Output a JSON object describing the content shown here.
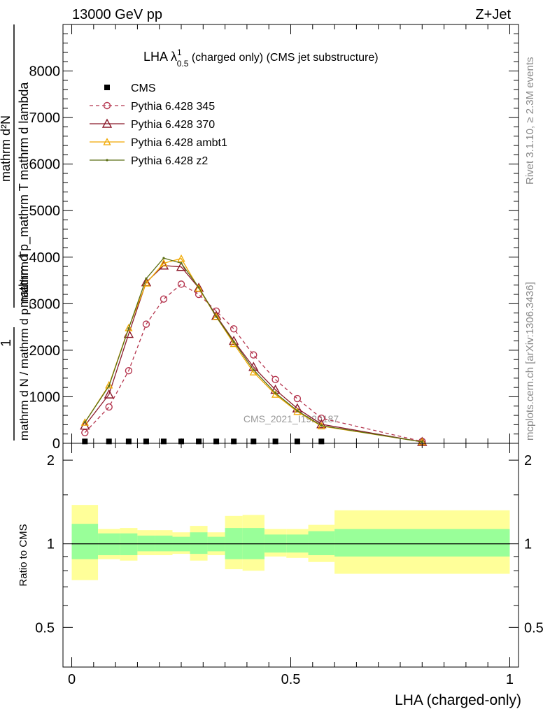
{
  "header": {
    "energy_label": "13000 GeV pp",
    "process_label": "Z+Jet"
  },
  "side_labels": {
    "rivet": "Rivet 3.1.10, ≥ 2.3M events",
    "mcplots": "mcplots.cern.ch [arXiv:1306.3436]"
  },
  "colors": {
    "cms": "#000000",
    "p345": "#b5364f",
    "p370": "#8b1a2b",
    "ambt1": "#f0a800",
    "z2": "#5b6e14",
    "band_inner": "#99ff99",
    "band_outer": "#ffff99"
  },
  "chart_data": [
    {
      "type": "line",
      "panel": "main",
      "title": {
        "main": "LHA λ",
        "sup": "1",
        "sub": "0.5",
        "suffix": " (charged only) (CMS jet substructure)"
      },
      "ylabel_numerator": "mathrm d²N",
      "ylabel_denominator": "mathrm d p_mathrm T mathrm d lambda",
      "ylabel_prefix": "1",
      "ylabel_prefix_den": "mathrm d N / mathrm d p_mathrm T",
      "watermark": "CMS_2021_I1920187",
      "xlim": [
        -0.02,
        1.02
      ],
      "ylim": [
        0,
        9000
      ],
      "yticks": [
        0,
        1000,
        2000,
        3000,
        4000,
        5000,
        6000,
        7000,
        8000
      ],
      "ytick_labels": [
        "0",
        "1000",
        "2000",
        "3000",
        "4000",
        "5000",
        "6000",
        "7000",
        "8000"
      ],
      "legend": {
        "position": "top-left",
        "entries": [
          "CMS",
          "Pythia 6.428 345",
          "Pythia 6.428 370",
          "Pythia 6.428 ambt1",
          "Pythia 6.428 z2"
        ]
      },
      "series": [
        {
          "name": "CMS",
          "x": [
            0.03,
            0.085,
            0.13,
            0.17,
            0.21,
            0.25,
            0.29,
            0.33,
            0.37,
            0.415,
            0.465,
            0.515,
            0.57
          ],
          "values": [
            10,
            10,
            10,
            10,
            10,
            10,
            10,
            10,
            10,
            10,
            10,
            10,
            10
          ]
        },
        {
          "name": "Pythia 6.428 345",
          "x": [
            0.03,
            0.085,
            0.13,
            0.17,
            0.21,
            0.25,
            0.29,
            0.33,
            0.37,
            0.415,
            0.465,
            0.515,
            0.57,
            0.8
          ],
          "values": [
            230,
            780,
            1560,
            2560,
            3100,
            3420,
            3200,
            2840,
            2460,
            1900,
            1370,
            960,
            540,
            40
          ]
        },
        {
          "name": "Pythia 6.428 370",
          "x": [
            0.03,
            0.085,
            0.13,
            0.17,
            0.21,
            0.25,
            0.29,
            0.33,
            0.37,
            0.415,
            0.465,
            0.515,
            0.57,
            0.8
          ],
          "values": [
            380,
            1050,
            2350,
            3460,
            3820,
            3790,
            3340,
            2740,
            2200,
            1640,
            1150,
            750,
            410,
            30
          ]
        },
        {
          "name": "Pythia 6.428 ambt1",
          "x": [
            0.03,
            0.085,
            0.13,
            0.17,
            0.21,
            0.25,
            0.29,
            0.33,
            0.37,
            0.415,
            0.465,
            0.515,
            0.57,
            0.8
          ],
          "values": [
            450,
            1250,
            2480,
            3440,
            3870,
            3970,
            3330,
            2720,
            2140,
            1530,
            1050,
            680,
            370,
            30
          ]
        },
        {
          "name": "Pythia 6.428 z2",
          "x": [
            0.03,
            0.085,
            0.13,
            0.17,
            0.21,
            0.25,
            0.29,
            0.33,
            0.37,
            0.415,
            0.465,
            0.515,
            0.57,
            0.8
          ],
          "values": [
            450,
            1230,
            2470,
            3540,
            3980,
            3870,
            3350,
            2720,
            2180,
            1580,
            1080,
            700,
            380,
            30
          ]
        }
      ]
    },
    {
      "type": "area",
      "panel": "ratio",
      "ylabel": "Ratio to CMS",
      "xlabel": "LHA (charged-only)",
      "xlim": [
        -0.02,
        1.02
      ],
      "ylim": [
        0.36,
        2.3
      ],
      "log_y": true,
      "yticks": [
        0.5,
        1,
        2
      ],
      "ytick_labels": [
        "0.5",
        "1",
        "2"
      ],
      "xticks": [
        0,
        0.5,
        1
      ],
      "xtick_labels": [
        "0",
        "0.5",
        "1"
      ],
      "bins": [
        {
          "lo": 0.0,
          "hi": 0.06,
          "inner": [
            0.88,
            1.18
          ],
          "outer": [
            0.74,
            1.38
          ]
        },
        {
          "lo": 0.06,
          "hi": 0.11,
          "inner": [
            0.91,
            1.09
          ],
          "outer": [
            0.88,
            1.13
          ]
        },
        {
          "lo": 0.11,
          "hi": 0.15,
          "inner": [
            0.91,
            1.09
          ],
          "outer": [
            0.87,
            1.14
          ]
        },
        {
          "lo": 0.15,
          "hi": 0.19,
          "inner": [
            0.94,
            1.07
          ],
          "outer": [
            0.91,
            1.12
          ]
        },
        {
          "lo": 0.19,
          "hi": 0.23,
          "inner": [
            0.94,
            1.07
          ],
          "outer": [
            0.91,
            1.12
          ]
        },
        {
          "lo": 0.23,
          "hi": 0.27,
          "inner": [
            0.94,
            1.06
          ],
          "outer": [
            0.92,
            1.1
          ]
        },
        {
          "lo": 0.27,
          "hi": 0.31,
          "inner": [
            0.92,
            1.1
          ],
          "outer": [
            0.87,
            1.16
          ]
        },
        {
          "lo": 0.31,
          "hi": 0.35,
          "inner": [
            0.94,
            1.06
          ],
          "outer": [
            0.91,
            1.1
          ]
        },
        {
          "lo": 0.35,
          "hi": 0.39,
          "inner": [
            0.88,
            1.14
          ],
          "outer": [
            0.81,
            1.26
          ]
        },
        {
          "lo": 0.39,
          "hi": 0.44,
          "inner": [
            0.88,
            1.14
          ],
          "outer": [
            0.8,
            1.27
          ]
        },
        {
          "lo": 0.44,
          "hi": 0.49,
          "inner": [
            0.93,
            1.08
          ],
          "outer": [
            0.9,
            1.13
          ]
        },
        {
          "lo": 0.49,
          "hi": 0.54,
          "inner": [
            0.93,
            1.08
          ],
          "outer": [
            0.89,
            1.13
          ]
        },
        {
          "lo": 0.54,
          "hi": 0.6,
          "inner": [
            0.91,
            1.11
          ],
          "outer": [
            0.86,
            1.17
          ]
        },
        {
          "lo": 0.6,
          "hi": 1.0,
          "inner": [
            0.9,
            1.13
          ],
          "outer": [
            0.78,
            1.32
          ]
        }
      ]
    }
  ]
}
